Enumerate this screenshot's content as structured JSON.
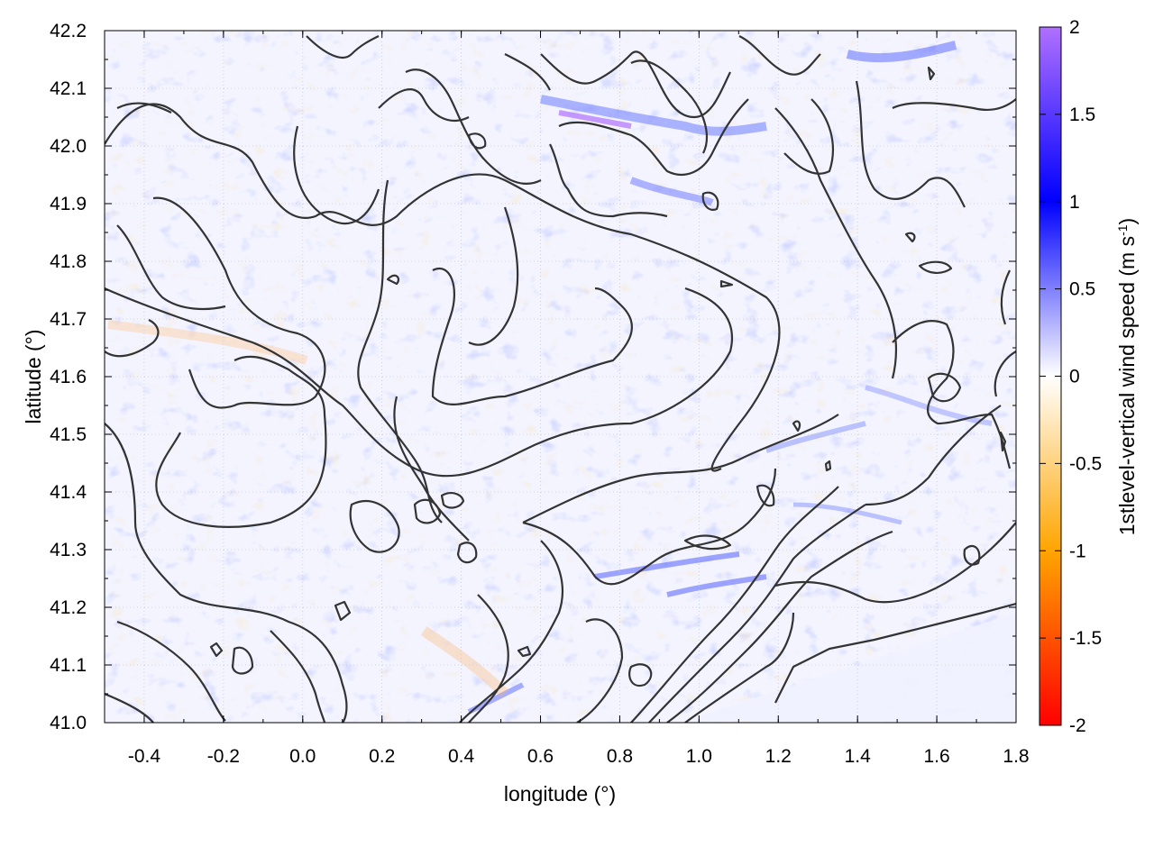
{
  "map": {
    "x_axis": {
      "title": "longitude (°)",
      "range": [
        -0.5,
        1.8
      ],
      "ticks": [
        "-0.4",
        "-0.2",
        "0.0",
        "0.2",
        "0.4",
        "0.6",
        "0.8",
        "1.0",
        "1.2",
        "1.4",
        "1.6",
        "1.8"
      ]
    },
    "y_axis": {
      "title": "latitude (°)",
      "range": [
        41.0,
        42.2
      ],
      "ticks": [
        "41.0",
        "41.1",
        "41.2",
        "41.3",
        "41.4",
        "41.5",
        "41.6",
        "41.7",
        "41.8",
        "41.9",
        "42.0",
        "42.1",
        "42.2"
      ]
    },
    "colorbar": {
      "title": "1stlevel-vertical wind speed (m s",
      "title_superscript": "-1",
      "title_close": ")",
      "range": [
        -2,
        2
      ],
      "ticks": [
        "2",
        "1.5",
        "1",
        "0.5",
        "0",
        "-0.5",
        "-1",
        "-1.5",
        "-2"
      ],
      "colors": {
        "max": "#b070ff",
        "high": "#0000ff",
        "zero": "#ffffff",
        "low": "#ffa500",
        "min": "#ff0000"
      }
    },
    "contour_color": "#333333",
    "grid": true
  }
}
